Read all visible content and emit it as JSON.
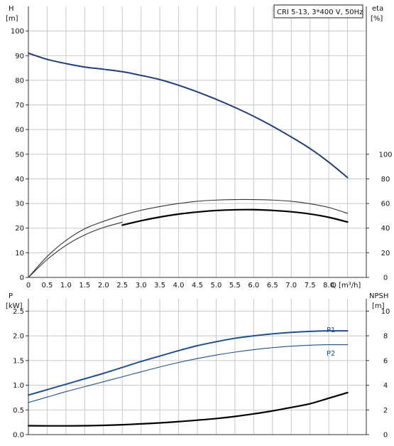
{
  "chart_data": [
    {
      "type": "line",
      "title": "CRI 5-13, 3*400 V, 50Hz",
      "xlabel": "Q [m³/h]",
      "x_unit": "Q [m³/h]",
      "xlim": [
        0,
        9.0
      ],
      "x_ticks": [
        0,
        0.5,
        1.0,
        1.5,
        2.0,
        2.5,
        3.0,
        3.5,
        4.0,
        4.5,
        5.0,
        5.5,
        6.0,
        6.5,
        7.0,
        7.5,
        8.0
      ],
      "x_tick_labels": [
        "0",
        "0.5",
        "1.0",
        "1.5",
        "2.0",
        "2.5",
        "3.0",
        "3.5",
        "4.0",
        "4.5",
        "5.0",
        "5.5",
        "6.0",
        "6.5",
        "7.0",
        "7.5",
        "8.0"
      ],
      "left_axis": {
        "label": "H",
        "unit": "[m]",
        "ylim": [
          0,
          110
        ],
        "ticks": [
          0,
          10,
          20,
          30,
          40,
          50,
          60,
          70,
          80,
          90,
          100
        ]
      },
      "right_axis": {
        "label": "eta",
        "unit": "[%]",
        "ylim": [
          0,
          220
        ],
        "ticks": [
          0,
          20,
          40,
          60,
          80,
          100
        ]
      },
      "grid": true,
      "series": [
        {
          "axis": "left",
          "color": "#1f3f7a",
          "x": [
            0,
            0.5,
            1.0,
            1.5,
            2.0,
            2.5,
            3.0,
            3.5,
            4.0,
            4.5,
            5.0,
            5.5,
            6.0,
            6.5,
            7.0,
            7.5,
            8.0,
            8.5
          ],
          "y": [
            91,
            88.5,
            86.8,
            85.4,
            84.5,
            83.5,
            82,
            80.3,
            78,
            75.3,
            72.3,
            69,
            65.4,
            61.4,
            57,
            52.3,
            46.8,
            40.5
          ]
        },
        {
          "axis": "right",
          "color": "#333333",
          "x": [
            0,
            0.5,
            1.0,
            1.5,
            2.0,
            2.5,
            3.0,
            3.5,
            4.0,
            4.5,
            5.0,
            5.5,
            6.0,
            6.5,
            7.0,
            7.5,
            8.0,
            8.5
          ],
          "y": [
            0,
            17,
            30,
            39.5,
            45.5,
            50.5,
            54.5,
            57.5,
            60,
            61.8,
            62.8,
            63.2,
            63.2,
            62.8,
            61.8,
            59.8,
            56.8,
            52
          ]
        },
        {
          "axis": "right",
          "color": "#333333",
          "x": [
            0,
            0.5,
            1.0,
            1.5,
            2.0,
            2.5
          ],
          "y": [
            0,
            14.5,
            26,
            34.5,
            40.5,
            44.8
          ]
        },
        {
          "axis": "right",
          "color": "#000000",
          "x": [
            2.5,
            3.0,
            3.5,
            4.0,
            4.5,
            5.0,
            5.5,
            6.0,
            6.5,
            7.0,
            7.5,
            8.0,
            8.5
          ],
          "y": [
            42.4,
            46,
            49,
            51.4,
            53.1,
            54.3,
            54.9,
            55,
            54.4,
            53.3,
            51.5,
            48.8,
            45
          ]
        }
      ]
    },
    {
      "type": "line",
      "xlim": [
        0,
        9.0
      ],
      "left_axis": {
        "label": "P",
        "unit": "[kW]",
        "ylim": [
          0,
          2.75
        ],
        "ticks": [
          0.0,
          0.5,
          1.0,
          1.5,
          2.0,
          2.5
        ],
        "tick_labels": [
          "0.0",
          "0.5",
          "1.0",
          "1.5",
          "2.0",
          "2.5"
        ]
      },
      "right_axis": {
        "label": "NPSH",
        "unit": "[m]",
        "ylim": [
          0,
          11
        ],
        "ticks": [
          0,
          2,
          4,
          6,
          8,
          10
        ]
      },
      "grid": true,
      "series": [
        {
          "name": "P1",
          "axis": "left",
          "color": "#1f4f8f",
          "x": [
            0,
            0.5,
            1.0,
            1.5,
            2.0,
            2.5,
            3.0,
            3.5,
            4.0,
            4.5,
            5.0,
            5.5,
            6.0,
            6.5,
            7.0,
            7.5,
            8.0,
            8.5
          ],
          "y": [
            0.8,
            0.91,
            1.02,
            1.13,
            1.24,
            1.36,
            1.48,
            1.59,
            1.7,
            1.8,
            1.88,
            1.95,
            2.0,
            2.04,
            2.07,
            2.09,
            2.1,
            2.1
          ]
        },
        {
          "name": "P2",
          "axis": "left",
          "color": "#1f4f8f",
          "x": [
            0,
            0.5,
            1.0,
            1.5,
            2.0,
            2.5,
            3.0,
            3.5,
            4.0,
            4.5,
            5.0,
            5.5,
            6.0,
            6.5,
            7.0,
            7.5,
            8.0,
            8.5
          ],
          "y": [
            0.65,
            0.76,
            0.87,
            0.97,
            1.07,
            1.17,
            1.27,
            1.37,
            1.46,
            1.54,
            1.61,
            1.67,
            1.72,
            1.76,
            1.79,
            1.81,
            1.82,
            1.82
          ]
        },
        {
          "axis": "right",
          "color": "#000000",
          "x": [
            0,
            0.5,
            1.0,
            1.5,
            2.0,
            2.5,
            3.0,
            3.5,
            4.0,
            4.5,
            5.0,
            5.5,
            6.0,
            6.5,
            7.0,
            7.5,
            8.0,
            8.5
          ],
          "y": [
            0.72,
            0.71,
            0.71,
            0.72,
            0.75,
            0.8,
            0.87,
            0.95,
            1.05,
            1.17,
            1.3,
            1.47,
            1.68,
            1.92,
            2.2,
            2.5,
            2.95,
            3.4
          ]
        }
      ]
    }
  ]
}
